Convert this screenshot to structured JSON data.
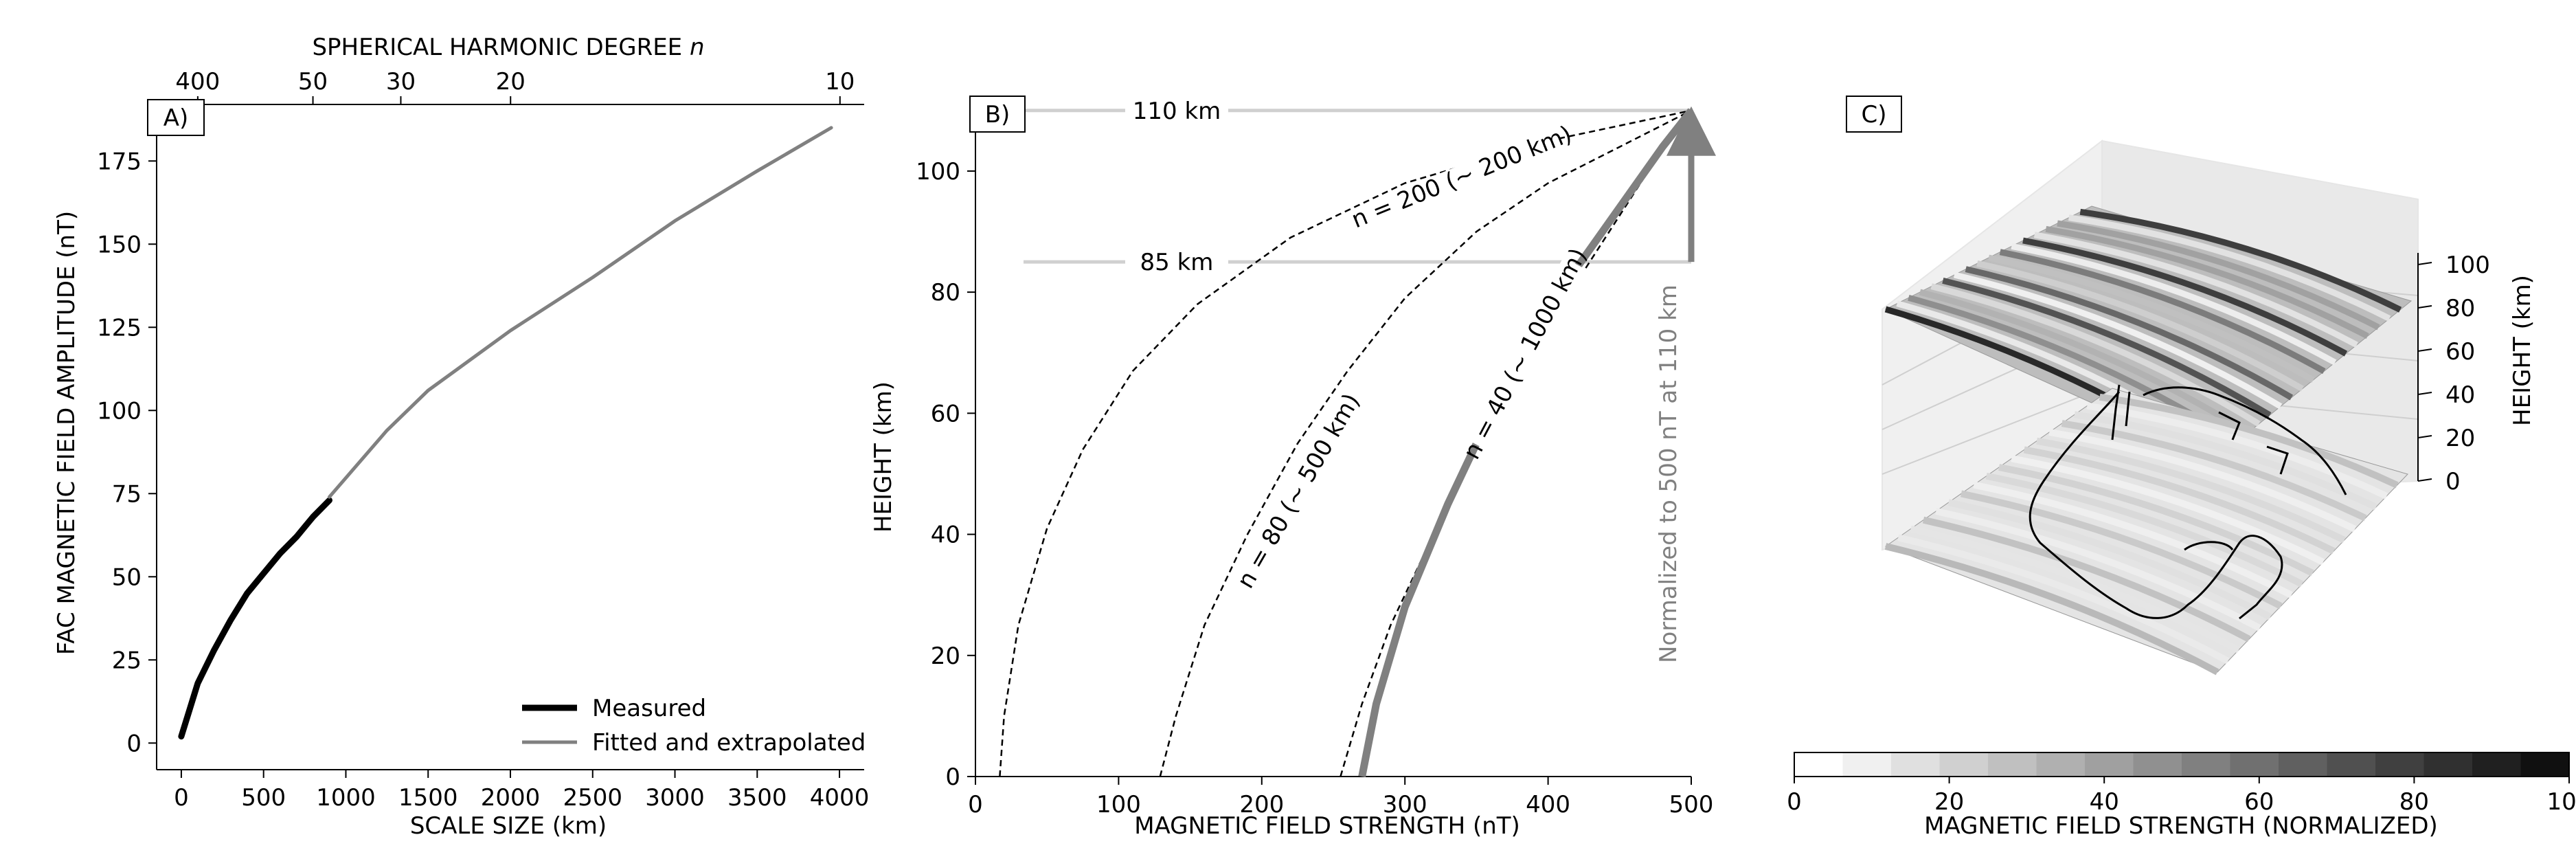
{
  "chart_data": [
    {
      "panel": "A)",
      "type": "line",
      "xlabel": "SCALE SIZE (km)",
      "ylabel": "FAC MAGNETIC FIELD AMPLITUDE (nT)",
      "top_axis_label": "SPHERICAL HARMONIC DEGREE",
      "top_axis_var": "n",
      "xlim": [
        -150,
        4150
      ],
      "ylim": [
        -8,
        192
      ],
      "xticks": [
        0,
        500,
        1000,
        1500,
        2000,
        2500,
        3000,
        3500,
        4000
      ],
      "yticks": [
        0,
        25,
        50,
        75,
        100,
        125,
        150,
        175
      ],
      "top_ticks": [
        {
          "label": "400",
          "x": 100
        },
        {
          "label": "50",
          "x": 800
        },
        {
          "label": "30",
          "x": 1334
        },
        {
          "label": "20",
          "x": 2001
        },
        {
          "label": "10",
          "x": 4003
        }
      ],
      "legend_position": "lower-right",
      "series": [
        {
          "name": "Measured",
          "color": "#000000",
          "x": [
            0,
            50,
            100,
            200,
            300,
            400,
            500,
            600,
            700,
            800,
            900
          ],
          "y": [
            2,
            10,
            18,
            28,
            37,
            45,
            51,
            57,
            62,
            68,
            73
          ]
        },
        {
          "name": "Fitted and extrapolated",
          "color": "#808080",
          "x": [
            900,
            1250,
            1500,
            2000,
            2500,
            3000,
            3500,
            3950
          ],
          "y": [
            74,
            94,
            106,
            124,
            140,
            157,
            172,
            185
          ]
        }
      ]
    },
    {
      "panel": "B)",
      "type": "line",
      "xlabel": "MAGNETIC FIELD STRENGTH (nT)",
      "ylabel": "HEIGHT (km)",
      "xlim": [
        0,
        500
      ],
      "ylim": [
        0,
        111
      ],
      "xticks": [
        0,
        100,
        200,
        300,
        400,
        500
      ],
      "yticks": [
        0,
        20,
        40,
        60,
        80,
        100
      ],
      "reference_lines": [
        {
          "label": "110 km",
          "y": 110
        },
        {
          "label": "85 km",
          "y": 85
        }
      ],
      "arrow_label": "Normalized to 500 nT at 110 km",
      "series": [
        {
          "name": "n = 200 (~ 200 km)",
          "style": "dashed",
          "color": "#000000",
          "x": [
            17,
            20,
            30,
            50,
            75,
            110,
            155,
            220,
            300,
            400,
            500
          ],
          "y": [
            0,
            10,
            25,
            41,
            54,
            67,
            78,
            89,
            98,
            105,
            110
          ]
        },
        {
          "name": "n = 80 (~ 500 km)",
          "style": "dashed",
          "color": "#000000",
          "x": [
            129,
            140,
            160,
            190,
            225,
            260,
            300,
            350,
            400,
            450,
            500
          ],
          "y": [
            0,
            10,
            25,
            40,
            55,
            67,
            79,
            90,
            98,
            104,
            110
          ]
        },
        {
          "name": "n = 40 (~ 1000 km)",
          "style": "dashed",
          "color": "#000000",
          "x": [
            255,
            270,
            290,
            320,
            350,
            380,
            410,
            440,
            470,
            500
          ],
          "y": [
            0,
            12,
            25,
            40,
            54,
            66,
            78,
            89,
            100,
            110
          ]
        },
        {
          "name": "",
          "style": "solid",
          "color": "#808080",
          "x": [
            270,
            280,
            300,
            330,
            360,
            390,
            420,
            450,
            480,
            500
          ],
          "y": [
            0,
            12,
            28,
            45,
            60,
            73,
            84,
            94,
            104,
            110
          ]
        }
      ]
    },
    {
      "panel": "C)",
      "type": "heatmap",
      "zlabel": "HEIGHT (km)",
      "zticks": [
        0,
        20,
        40,
        60,
        80,
        100
      ],
      "colorbar_label": "MAGNETIC FIELD STRENGTH (NORMALIZED)",
      "colorbar_ticks": [
        0,
        20,
        40,
        60,
        80,
        100
      ],
      "colorbar_levels": [
        "#ffffff",
        "#f0f0f0",
        "#e0e0e0",
        "#d0d0d0",
        "#c0c0c0",
        "#b0b0b0",
        "#a0a0a0",
        "#909090",
        "#808080",
        "#707070",
        "#606060",
        "#505050",
        "#404040",
        "#303030",
        "#202020",
        "#101010"
      ]
    }
  ]
}
